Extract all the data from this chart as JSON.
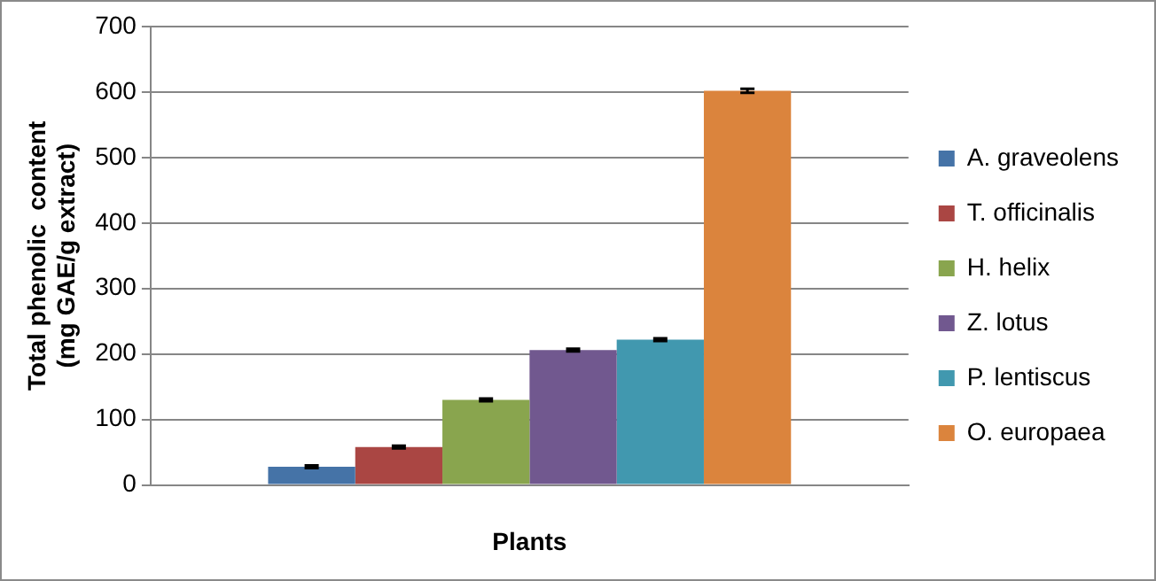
{
  "chart_data": {
    "type": "bar",
    "xlabel": "Plants",
    "ylabel": "Total phenolic  content  (mg GAE/g extract)",
    "categories": [
      null
    ],
    "series": [
      {
        "name": "A. graveolens",
        "color": "#4573a7",
        "values": [
          28
        ],
        "errors": [
          2
        ]
      },
      {
        "name": "T. officinalis",
        "color": "#aa4643",
        "values": [
          58
        ],
        "errors": [
          2
        ]
      },
      {
        "name": "H. helix",
        "color": "#89a54e",
        "values": [
          130
        ],
        "errors": [
          2
        ]
      },
      {
        "name": "Z. lotus",
        "color": "#71588f",
        "values": [
          206
        ],
        "errors": [
          2
        ]
      },
      {
        "name": "P. lentiscus",
        "color": "#4198af",
        "values": [
          222
        ],
        "errors": [
          2
        ]
      },
      {
        "name": "O. europaea",
        "color": "#db843d",
        "values": [
          602
        ],
        "errors": [
          3
        ]
      }
    ],
    "ylim": [
      0,
      700
    ],
    "yticks": [
      0,
      100,
      200,
      300,
      400,
      500,
      600,
      700
    ],
    "grid": "y",
    "legend": "right"
  }
}
